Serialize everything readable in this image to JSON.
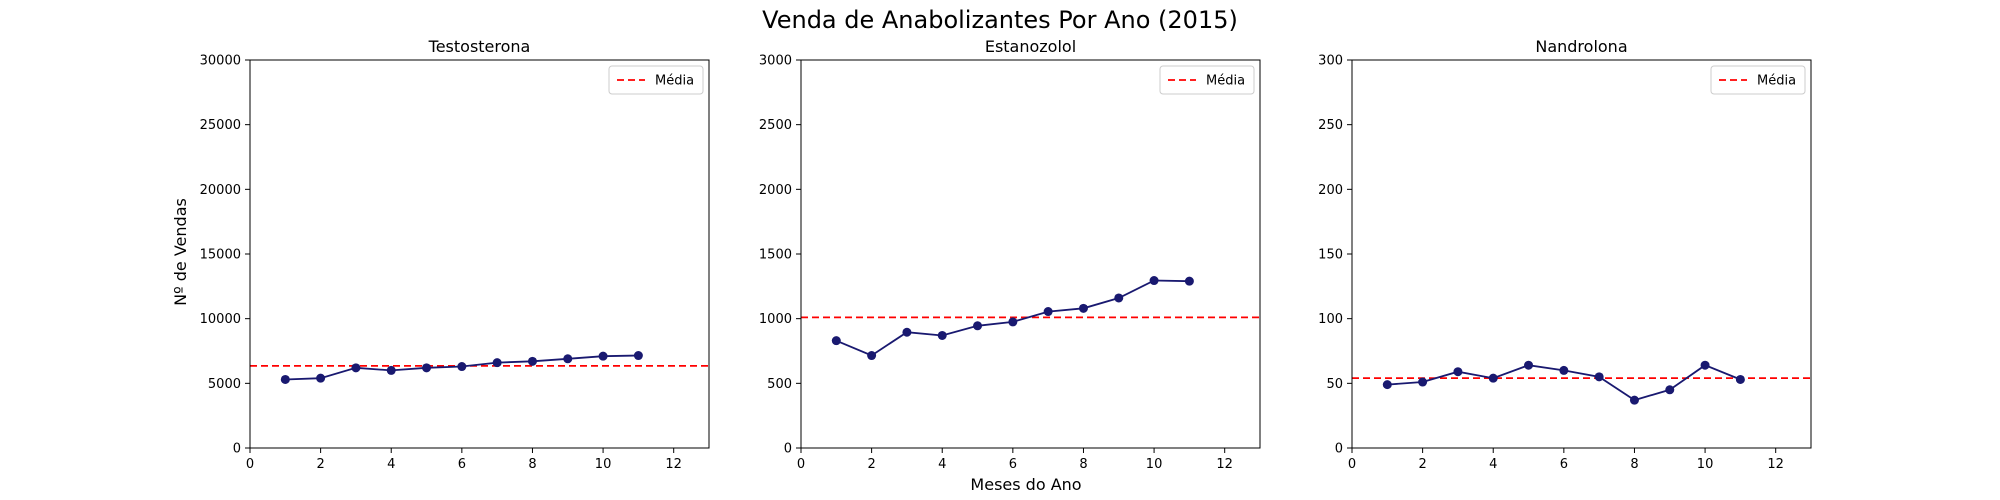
{
  "figure": {
    "suptitle": "Venda de Anabolizantes Por Ano (2015)",
    "xlabel": "Meses do Ano",
    "ylabel": "Nº de Vendas"
  },
  "colors": {
    "line": "#191970",
    "mean_line": "#ff0000",
    "axes": "#000000"
  },
  "chart_data": [
    {
      "type": "line",
      "title": "Testosterona",
      "x": [
        1,
        2,
        3,
        4,
        5,
        6,
        7,
        8,
        9,
        10,
        11
      ],
      "series": [
        {
          "values": [
            5300,
            5400,
            6200,
            6000,
            6200,
            6300,
            6600,
            6700,
            6900,
            7100,
            7150
          ]
        }
      ],
      "mean": 6350,
      "legend": {
        "label": "Média",
        "placement": "top-right"
      },
      "xlim": [
        0,
        13
      ],
      "ylim": [
        0,
        30000
      ],
      "xticks": [
        0,
        2,
        4,
        6,
        8,
        10,
        12
      ],
      "yticks": [
        0,
        5000,
        10000,
        15000,
        20000,
        25000,
        30000
      ],
      "grid": false
    },
    {
      "type": "line",
      "title": "Estanozolol",
      "x": [
        1,
        2,
        3,
        4,
        5,
        6,
        7,
        8,
        9,
        10,
        11
      ],
      "series": [
        {
          "values": [
            830,
            715,
            895,
            870,
            945,
            975,
            1055,
            1080,
            1160,
            1295,
            1290
          ]
        }
      ],
      "mean": 1010,
      "legend": {
        "label": "Média",
        "placement": "top-right"
      },
      "xlim": [
        0,
        13
      ],
      "ylim": [
        0,
        3000
      ],
      "xticks": [
        0,
        2,
        4,
        6,
        8,
        10,
        12
      ],
      "yticks": [
        0,
        500,
        1000,
        1500,
        2000,
        2500,
        3000
      ],
      "grid": false
    },
    {
      "type": "line",
      "title": "Nandrolona",
      "x": [
        1,
        2,
        3,
        4,
        5,
        6,
        7,
        8,
        9,
        10,
        11
      ],
      "series": [
        {
          "values": [
            49,
            51,
            59,
            54,
            64,
            60,
            55,
            37,
            45,
            64,
            53
          ]
        }
      ],
      "mean": 54,
      "legend": {
        "label": "Média",
        "placement": "top-right"
      },
      "xlim": [
        0,
        13
      ],
      "ylim": [
        0,
        300
      ],
      "xticks": [
        0,
        2,
        4,
        6,
        8,
        10,
        12
      ],
      "yticks": [
        0,
        50,
        100,
        150,
        200,
        250,
        300
      ],
      "grid": false
    }
  ]
}
